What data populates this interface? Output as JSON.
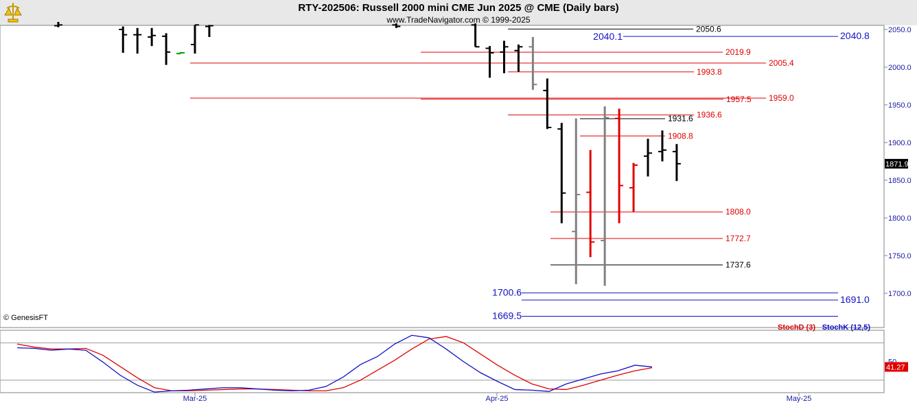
{
  "header": {
    "title": "RTY-202506:  Russell 2000 mini CME Jun 2025 @ CME  (Daily bars)",
    "subtitle": "www.TradeNavigator.com © 1999-2025"
  },
  "watermark": "© GenesisFT",
  "colors": {
    "up": "#000000",
    "down": "#e00000",
    "neutral": "#808080",
    "green": "#00a000",
    "blue": "#1010c8",
    "red": "#e00000"
  },
  "chart_data": [
    {
      "type": "bar",
      "subtype": "ohlc",
      "ylim": [
        1655,
        2055
      ],
      "y_ticks": [
        "2050.0",
        "2000.0",
        "1950.0",
        "1900.0",
        "1850.0",
        "1800.0",
        "1750.0",
        "1700.0"
      ],
      "x_ticks": [
        {
          "label": "Mar-25",
          "index": 0
        },
        {
          "label": "Apr-25",
          "index": 21
        },
        {
          "label": "May-25",
          "index": 42
        }
      ],
      "last_price": "1871.9",
      "bars": [
        {
          "i": -9.5,
          "o": 2055,
          "h": 2060,
          "l": 2053,
          "c": 2056,
          "color": "up"
        },
        {
          "i": -5.0,
          "o": 2050,
          "h": 2054,
          "l": 2019,
          "c": 2043,
          "color": "up"
        },
        {
          "i": -4.0,
          "o": 2043,
          "h": 2052,
          "l": 2018,
          "c": 2043,
          "color": "up"
        },
        {
          "i": -3.0,
          "o": 2040,
          "h": 2052,
          "l": 2028,
          "c": 2042,
          "color": "up"
        },
        {
          "i": -2.0,
          "o": 2041,
          "h": 2045,
          "l": 2003,
          "c": 2020,
          "color": "up"
        },
        {
          "i": -1.0,
          "o": 2018,
          "h": 2020,
          "l": 2018,
          "c": 2019,
          "color": "green"
        },
        {
          "i": 0.0,
          "o": 2030,
          "h": 2056,
          "l": 2018,
          "c": 2056,
          "color": "up"
        },
        {
          "i": 1.0,
          "o": 2054,
          "h": 2056,
          "l": 2040,
          "c": 2055,
          "color": "up"
        },
        {
          "i": 14.0,
          "o": 2056,
          "h": 2058,
          "l": 2052,
          "c": 2054,
          "color": "up"
        },
        {
          "i": 19.5,
          "o": 2056,
          "h": 2058,
          "l": 2027,
          "c": 2027,
          "color": "up"
        },
        {
          "i": 20.5,
          "o": 2025,
          "h": 2028,
          "l": 1986,
          "c": 2019,
          "color": "up"
        },
        {
          "i": 21.5,
          "o": 2020,
          "h": 2035,
          "l": 1992,
          "c": 2027,
          "color": "up"
        },
        {
          "i": 22.5,
          "o": 2022,
          "h": 2030,
          "l": 1994,
          "c": 2027,
          "color": "up"
        },
        {
          "i": 23.5,
          "o": 2027,
          "h": 2040,
          "l": 1970,
          "c": 1977,
          "color": "neutral"
        },
        {
          "i": 24.5,
          "o": 1969,
          "h": 1985,
          "l": 1918,
          "c": 1920,
          "color": "up"
        },
        {
          "i": 25.5,
          "o": 1918,
          "h": 1926,
          "l": 1793,
          "c": 1833,
          "color": "up"
        },
        {
          "i": 26.5,
          "o": 1782,
          "h": 1932,
          "l": 1712,
          "c": 1831,
          "color": "neutral"
        },
        {
          "i": 27.5,
          "o": 1834,
          "h": 1890,
          "l": 1748,
          "c": 1768,
          "color": "down"
        },
        {
          "i": 28.5,
          "o": 1770,
          "h": 1948,
          "l": 1710,
          "c": 1933,
          "color": "neutral"
        },
        {
          "i": 29.5,
          "o": 1932,
          "h": 1945,
          "l": 1793,
          "c": 1843,
          "color": "down"
        },
        {
          "i": 30.5,
          "o": 1840,
          "h": 1873,
          "l": 1808,
          "c": 1870,
          "color": "down"
        },
        {
          "i": 31.5,
          "o": 1882,
          "h": 1905,
          "l": 1855,
          "c": 1886,
          "color": "up"
        },
        {
          "i": 32.5,
          "o": 1888,
          "h": 1916,
          "l": 1875,
          "c": 1890,
          "color": "up"
        },
        {
          "i": 33.5,
          "o": 1888,
          "h": 1898,
          "l": 1849,
          "c": 1871.9,
          "color": "up"
        }
      ],
      "levels": [
        {
          "value": 2050.6,
          "label": "2050.6",
          "color": "black"
        },
        {
          "value": 2040.8,
          "label": "2040.8",
          "color": "blue"
        },
        {
          "value": 2040.1,
          "label": "2040.1",
          "color": "blue"
        },
        {
          "value": 2019.9,
          "label": "2019.9",
          "color": "red"
        },
        {
          "value": 2005.4,
          "label": "2005.4",
          "color": "red"
        },
        {
          "value": 1993.8,
          "label": "1993.8",
          "color": "red"
        },
        {
          "value": 1959.0,
          "label": "1959.0",
          "color": "red"
        },
        {
          "value": 1957.5,
          "label": "1957.5",
          "color": "red"
        },
        {
          "value": 1936.6,
          "label": "1936.6",
          "color": "red"
        },
        {
          "value": 1931.6,
          "label": "1931.6",
          "color": "black"
        },
        {
          "value": 1908.8,
          "label": "1908.8",
          "color": "red"
        },
        {
          "value": 1808.0,
          "label": "1808.0",
          "color": "red"
        },
        {
          "value": 1772.7,
          "label": "1772.7",
          "color": "red"
        },
        {
          "value": 1737.6,
          "label": "1737.6",
          "color": "black"
        },
        {
          "value": 1700.6,
          "label": "1700.6",
          "color": "blue"
        },
        {
          "value": 1691.0,
          "label": "1691.0",
          "color": "blue"
        },
        {
          "value": 1669.5,
          "label": "1669.5",
          "color": "blue"
        }
      ]
    },
    {
      "type": "line",
      "ylim": [
        0,
        100
      ],
      "y_ticks": [
        "50"
      ],
      "last_value": "41.27",
      "series": [
        {
          "name": "StochD (3)",
          "color": "#e00000",
          "values": [
            78,
            73,
            70,
            70,
            71,
            60,
            42,
            24,
            8,
            3,
            3,
            4,
            5,
            6,
            6,
            5,
            4,
            3,
            3,
            8,
            20,
            36,
            52,
            70,
            86,
            90,
            80,
            62,
            44,
            28,
            14,
            6,
            5,
            12,
            20,
            28,
            35,
            40
          ]
        },
        {
          "name": "StochK (12,5)",
          "color": "#1010c8",
          "values": [
            72,
            71,
            68,
            70,
            68,
            49,
            28,
            12,
            1,
            3,
            4,
            6,
            8,
            8,
            6,
            4,
            3,
            4,
            10,
            25,
            45,
            58,
            78,
            92,
            88,
            70,
            50,
            32,
            18,
            5,
            4,
            2,
            14,
            22,
            30,
            35,
            44,
            41.27
          ]
        }
      ]
    }
  ]
}
